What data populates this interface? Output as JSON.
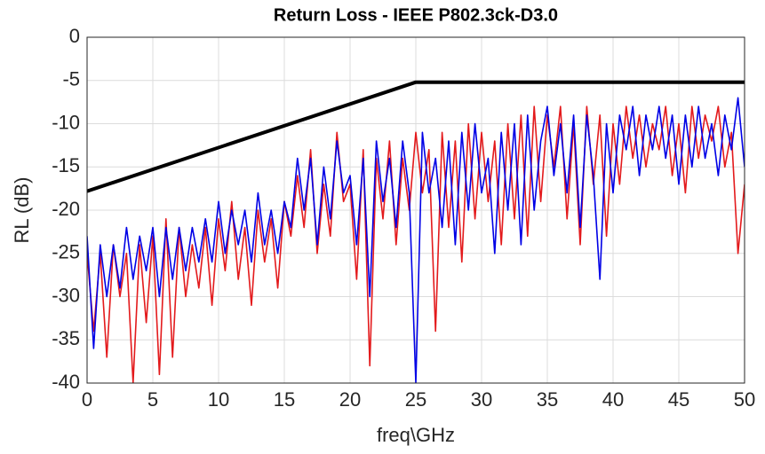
{
  "chart_data": {
    "type": "line",
    "title": "Return Loss - IEEE P802.3ck-D3.0",
    "xlabel": "freq\\GHz",
    "ylabel": "RL (dB)",
    "xlim": [
      0,
      50
    ],
    "ylim": [
      -40,
      0
    ],
    "xticks": [
      0,
      5,
      10,
      15,
      20,
      25,
      30,
      35,
      40,
      45,
      50
    ],
    "yticks": [
      0,
      -5,
      -10,
      -15,
      -20,
      -25,
      -30,
      -35,
      -40
    ],
    "grid": true,
    "x": [
      0,
      0.5,
      1,
      1.5,
      2,
      2.5,
      3,
      3.5,
      4,
      4.5,
      5,
      5.5,
      6,
      6.5,
      7,
      7.5,
      8,
      8.5,
      9,
      9.5,
      10,
      10.5,
      11,
      11.5,
      12,
      12.5,
      13,
      13.5,
      14,
      14.5,
      15,
      15.5,
      16,
      16.5,
      17,
      17.5,
      18,
      18.5,
      19,
      19.5,
      20,
      20.5,
      21,
      21.5,
      22,
      22.5,
      23,
      23.5,
      24,
      24.5,
      25,
      25.5,
      26,
      26.5,
      27,
      27.5,
      28,
      28.5,
      29,
      29.5,
      30,
      30.5,
      31,
      31.5,
      32,
      32.5,
      33,
      33.5,
      34,
      34.5,
      35,
      35.5,
      36,
      36.5,
      37,
      37.5,
      38,
      38.5,
      39,
      39.5,
      40,
      40.5,
      41,
      41.5,
      42,
      42.5,
      43,
      43.5,
      44,
      44.5,
      45,
      45.5,
      46,
      46.5,
      47,
      47.5,
      48,
      48.5,
      49,
      49.5,
      50
    ],
    "series": [
      {
        "color": "#e31a1c",
        "values": [
          -25,
          -34,
          -25,
          -37,
          -24,
          -30,
          -25,
          -40,
          -24,
          -33,
          -23,
          -39,
          -21,
          -37,
          -22,
          -30,
          -24,
          -29,
          -22,
          -31,
          -21,
          -27,
          -19,
          -28,
          -22,
          -31,
          -20,
          -26,
          -21,
          -29,
          -19,
          -23,
          -16,
          -22,
          -13,
          -25,
          -17,
          -23,
          -11,
          -19,
          -17,
          -28,
          -13,
          -38,
          -14,
          -21,
          -12,
          -24,
          -14,
          -20,
          -11,
          -18,
          -13,
          -34,
          -11,
          -22,
          -12,
          -26,
          -10,
          -21,
          -11,
          -19,
          -12,
          -24,
          -10,
          -21,
          -9,
          -23,
          -8,
          -19,
          -9,
          -15,
          -8,
          -21,
          -10,
          -24,
          -8,
          -17,
          -9,
          -23,
          -10,
          -17,
          -8,
          -14,
          -9,
          -15,
          -10,
          -13,
          -8,
          -16,
          -10,
          -18,
          -8,
          -14,
          -9,
          -12,
          -8,
          -15,
          -11,
          -25,
          -17
        ]
      },
      {
        "color": "#0000e6",
        "values": [
          -23,
          -36,
          -24,
          -30,
          -24,
          -29,
          -22,
          -28,
          -23,
          -27,
          -22,
          -30,
          -22,
          -28,
          -22,
          -27,
          -22,
          -26,
          -21,
          -26,
          -19,
          -25,
          -20,
          -24,
          -20,
          -26,
          -18,
          -24,
          -20,
          -25,
          -19,
          -22,
          -14,
          -20,
          -14,
          -24,
          -15,
          -21,
          -12,
          -18,
          -16,
          -24,
          -14,
          -30,
          -12,
          -19,
          -14,
          -22,
          -12,
          -18,
          -40,
          -11,
          -18,
          -14,
          -22,
          -12,
          -24,
          -11,
          -20,
          -10,
          -18,
          -14,
          -25,
          -11,
          -20,
          -10,
          -24,
          -9,
          -20,
          -12,
          -8,
          -16,
          -10,
          -18,
          -9,
          -22,
          -9,
          -16,
          -28,
          -10,
          -18,
          -9,
          -13,
          -8,
          -16,
          -9,
          -13,
          -8,
          -14,
          -9,
          -17,
          -9,
          -15,
          -8,
          -14,
          -10,
          -16,
          -9,
          -13,
          -7,
          -15
        ]
      },
      {
        "color": "#000000",
        "x": [
          0,
          25,
          50
        ],
        "values": [
          -17.8,
          -5.2,
          -5.2
        ]
      }
    ]
  }
}
